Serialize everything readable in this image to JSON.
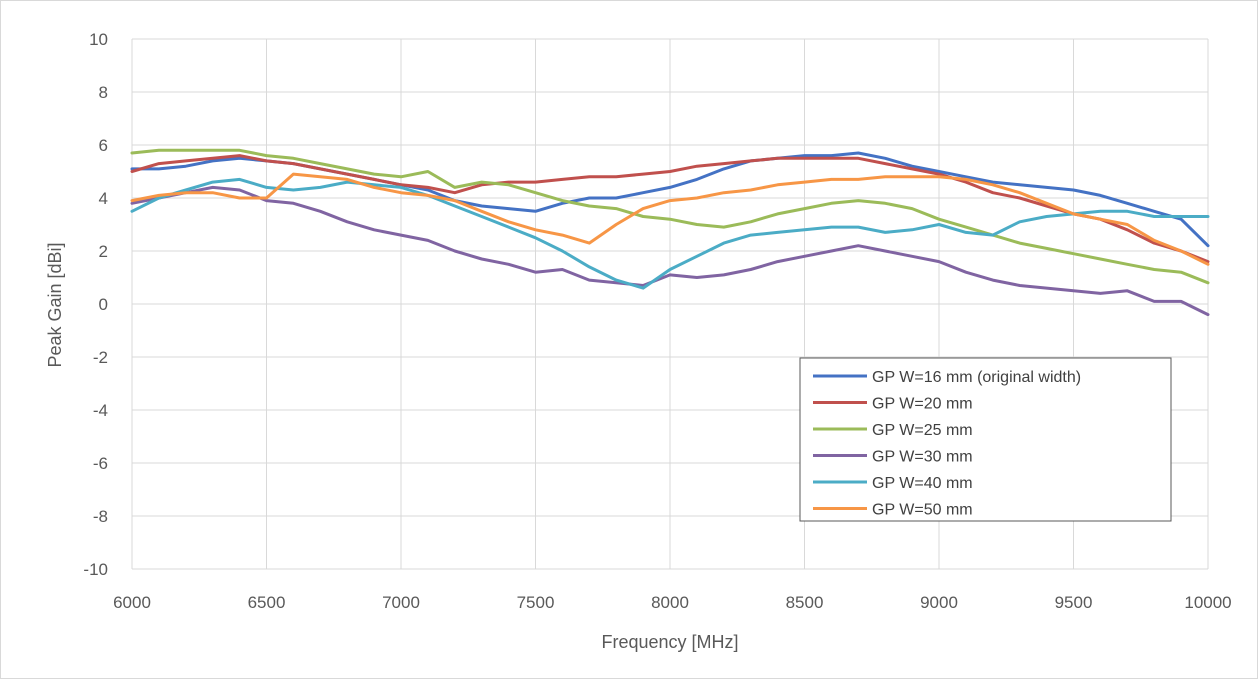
{
  "chart_data": {
    "type": "line",
    "title": "",
    "xlabel": "Frequency [MHz]",
    "ylabel": "Peak Gain [dBi]",
    "xlim": [
      6000,
      10000
    ],
    "ylim": [
      -10,
      10
    ],
    "x_ticks": [
      "6000",
      "6500",
      "7000",
      "7500",
      "8000",
      "8500",
      "9000",
      "9500",
      "10000"
    ],
    "y_ticks": [
      "-10",
      "-8",
      "-6",
      "-4",
      "-2",
      "0",
      "2",
      "4",
      "6",
      "8",
      "10"
    ],
    "grid": true,
    "legend_position": "bottom-right",
    "x": [
      6000,
      6100,
      6200,
      6300,
      6400,
      6500,
      6600,
      6700,
      6800,
      6900,
      7000,
      7100,
      7200,
      7300,
      7400,
      7500,
      7600,
      7700,
      7800,
      7900,
      8000,
      8100,
      8200,
      8300,
      8400,
      8500,
      8600,
      8700,
      8800,
      8900,
      9000,
      9100,
      9200,
      9300,
      9400,
      9500,
      9600,
      9700,
      9800,
      9900,
      10000
    ],
    "series": [
      {
        "name": "GP W=16 mm (original width)",
        "color": "#4472c4",
        "values": [
          5.1,
          5.1,
          5.2,
          5.4,
          5.5,
          5.4,
          5.3,
          5.1,
          4.9,
          4.7,
          4.5,
          4.3,
          3.9,
          3.7,
          3.6,
          3.5,
          3.8,
          4.0,
          4.0,
          4.2,
          4.4,
          4.7,
          5.1,
          5.4,
          5.5,
          5.6,
          5.6,
          5.7,
          5.5,
          5.2,
          5.0,
          4.8,
          4.6,
          4.5,
          4.4,
          4.3,
          4.1,
          3.8,
          3.5,
          3.2,
          2.2
        ]
      },
      {
        "name": "GP W=20 mm",
        "color": "#c0504d",
        "values": [
          5.0,
          5.3,
          5.4,
          5.5,
          5.6,
          5.4,
          5.3,
          5.1,
          4.9,
          4.7,
          4.5,
          4.4,
          4.2,
          4.5,
          4.6,
          4.6,
          4.7,
          4.8,
          4.8,
          4.9,
          5.0,
          5.2,
          5.3,
          5.4,
          5.5,
          5.5,
          5.5,
          5.5,
          5.3,
          5.1,
          4.9,
          4.6,
          4.2,
          4.0,
          3.7,
          3.4,
          3.2,
          2.8,
          2.3,
          2.0,
          1.6
        ]
      },
      {
        "name": "GP W=25 mm",
        "color": "#9bbb59",
        "values": [
          5.7,
          5.8,
          5.8,
          5.8,
          5.8,
          5.6,
          5.5,
          5.3,
          5.1,
          4.9,
          4.8,
          5.0,
          4.4,
          4.6,
          4.5,
          4.2,
          3.9,
          3.7,
          3.6,
          3.3,
          3.2,
          3.0,
          2.9,
          3.1,
          3.4,
          3.6,
          3.8,
          3.9,
          3.8,
          3.6,
          3.2,
          2.9,
          2.6,
          2.3,
          2.1,
          1.9,
          1.7,
          1.5,
          1.3,
          1.2,
          0.8
        ]
      },
      {
        "name": "GP W=30 mm",
        "color": "#8064a2",
        "values": [
          3.8,
          4.0,
          4.2,
          4.4,
          4.3,
          3.9,
          3.8,
          3.5,
          3.1,
          2.8,
          2.6,
          2.4,
          2.0,
          1.7,
          1.5,
          1.2,
          1.3,
          0.9,
          0.8,
          0.7,
          1.1,
          1.0,
          1.1,
          1.3,
          1.6,
          1.8,
          2.0,
          2.2,
          2.0,
          1.8,
          1.6,
          1.2,
          0.9,
          0.7,
          0.6,
          0.5,
          0.4,
          0.5,
          0.1,
          0.1,
          -0.4
        ]
      },
      {
        "name": "GP W=40 mm",
        "color": "#4bacc6",
        "values": [
          3.5,
          4.0,
          4.3,
          4.6,
          4.7,
          4.4,
          4.3,
          4.4,
          4.6,
          4.5,
          4.4,
          4.1,
          3.7,
          3.3,
          2.9,
          2.5,
          2.0,
          1.4,
          0.9,
          0.6,
          1.3,
          1.8,
          2.3,
          2.6,
          2.7,
          2.8,
          2.9,
          2.9,
          2.7,
          2.8,
          3.0,
          2.7,
          2.6,
          3.1,
          3.3,
          3.4,
          3.5,
          3.5,
          3.3,
          3.3,
          3.3
        ]
      },
      {
        "name": "GP W=50 mm",
        "color": "#f79646",
        "values": [
          3.9,
          4.1,
          4.2,
          4.2,
          4.0,
          4.0,
          4.9,
          4.8,
          4.7,
          4.4,
          4.2,
          4.1,
          3.9,
          3.5,
          3.1,
          2.8,
          2.6,
          2.3,
          3.0,
          3.6,
          3.9,
          4.0,
          4.2,
          4.3,
          4.5,
          4.6,
          4.7,
          4.7,
          4.8,
          4.8,
          4.8,
          4.7,
          4.5,
          4.2,
          3.8,
          3.4,
          3.2,
          3.0,
          2.4,
          2.0,
          1.5
        ]
      }
    ]
  }
}
